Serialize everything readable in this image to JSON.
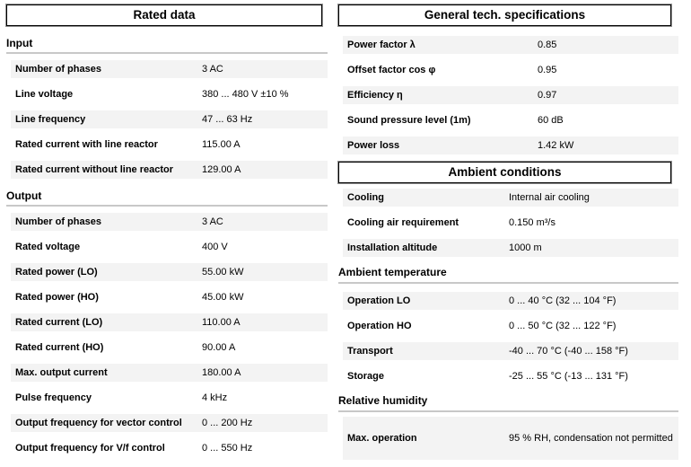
{
  "colors": {
    "stripe": "#f3f3f3",
    "rule": "#c8c8c8",
    "box_border": "#000000",
    "box_outline": "#8f8f8f"
  },
  "left_column": {
    "header": "Rated data",
    "input": {
      "heading": "Input",
      "rows": [
        {
          "label": "Number of phases",
          "value": "3 AC"
        },
        {
          "label": "Line voltage",
          "value": "380 ... 480 V ±10 %"
        },
        {
          "label": "Line frequency",
          "value": "47 ... 63 Hz"
        },
        {
          "label": "Rated current with line reactor",
          "value": "115.00 A"
        },
        {
          "label": "Rated current without line reactor",
          "value": "129.00 A"
        }
      ]
    },
    "output": {
      "heading": "Output",
      "rows": [
        {
          "label": "Number of phases",
          "value": "3 AC"
        },
        {
          "label": "Rated voltage",
          "value": "400 V"
        },
        {
          "label": "Rated power (LO)",
          "value": "55.00 kW"
        },
        {
          "label": "Rated power (HO)",
          "value": "45.00 kW"
        },
        {
          "label": "Rated current (LO)",
          "value": "110.00 A"
        },
        {
          "label": "Rated current (HO)",
          "value": "90.00 A"
        },
        {
          "label": "Max. output current",
          "value": "180.00 A"
        },
        {
          "label": "Pulse frequency",
          "value": "4 kHz"
        },
        {
          "label": "Output frequency for vector control",
          "value": "0 ... 200 Hz"
        },
        {
          "label": "Output frequency for V/f control",
          "value": "0 ... 550 Hz"
        }
      ]
    }
  },
  "right_column": {
    "general": {
      "header": "General tech. specifications",
      "rows": [
        {
          "label": "Power factor λ",
          "value": "0.85"
        },
        {
          "label": "Offset factor cos φ",
          "value": "0.95"
        },
        {
          "label": "Efficiency η",
          "value": "0.97"
        },
        {
          "label": "Sound pressure level (1m)",
          "value": "60 dB"
        },
        {
          "label": "Power loss",
          "value": "1.42 kW"
        }
      ]
    },
    "ambient": {
      "header": "Ambient conditions",
      "rows": [
        {
          "label": "Cooling",
          "value": "Internal air cooling"
        },
        {
          "label": "Cooling air requirement",
          "value": "0.150 m³/s"
        },
        {
          "label": "Installation altitude",
          "value": "1000 m"
        }
      ]
    },
    "temperature": {
      "heading": "Ambient temperature",
      "rows": [
        {
          "label": "Operation LO",
          "value": "0 ... 40 °C (32 ... 104 °F)"
        },
        {
          "label": "Operation HO",
          "value": "0 ... 50 °C (32 ... 122 °F)"
        },
        {
          "label": "Transport",
          "value": "-40 ... 70 °C (-40 ... 158 °F)"
        },
        {
          "label": "Storage",
          "value": "-25 ... 55 °C (-13 ... 131 °F)"
        }
      ]
    },
    "humidity": {
      "heading": "Relative humidity",
      "rows": [
        {
          "label": "Max. operation",
          "value": "95 % RH, condensation not permitted"
        }
      ]
    }
  }
}
